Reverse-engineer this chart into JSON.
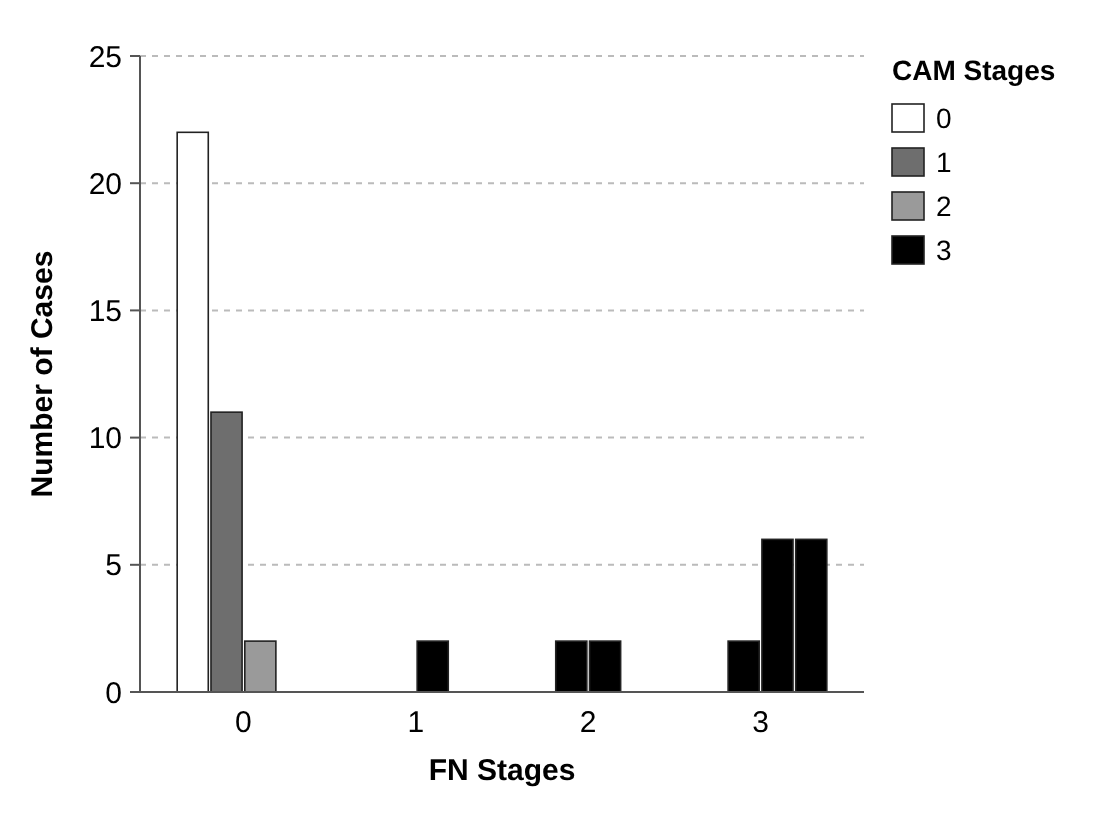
{
  "chart_data": {
    "type": "bar",
    "xlabel": "FN Stages",
    "ylabel": "Number of Cases",
    "legend_title": "CAM Stages",
    "categories": [
      "0",
      "1",
      "2",
      "3"
    ],
    "series": [
      {
        "name": "0",
        "color": "#ffffff",
        "colors": [
          "#ffffff",
          "#000000",
          "#000000",
          "#000000"
        ],
        "values": [
          22,
          0,
          0,
          0
        ]
      },
      {
        "name": "1",
        "color": "#6e6e6e",
        "colors": [
          "#6e6e6e",
          "#000000",
          "#000000",
          "#000000"
        ],
        "values": [
          11,
          0,
          2,
          2
        ]
      },
      {
        "name": "2",
        "color": "#9a9a9a",
        "colors": [
          "#9a9a9a",
          "#000000",
          "#000000",
          "#000000"
        ],
        "values": [
          2,
          2,
          2,
          6
        ]
      },
      {
        "name": "3",
        "color": "#000000",
        "colors": [
          "#ffffff",
          "#000000",
          "#000000",
          "#000000"
        ],
        "values": [
          0,
          0,
          0,
          6
        ]
      }
    ],
    "ylim": [
      0,
      25
    ],
    "yticks": [
      0,
      5,
      10,
      15,
      20,
      25
    ],
    "grid": "y",
    "legend": "top right"
  }
}
